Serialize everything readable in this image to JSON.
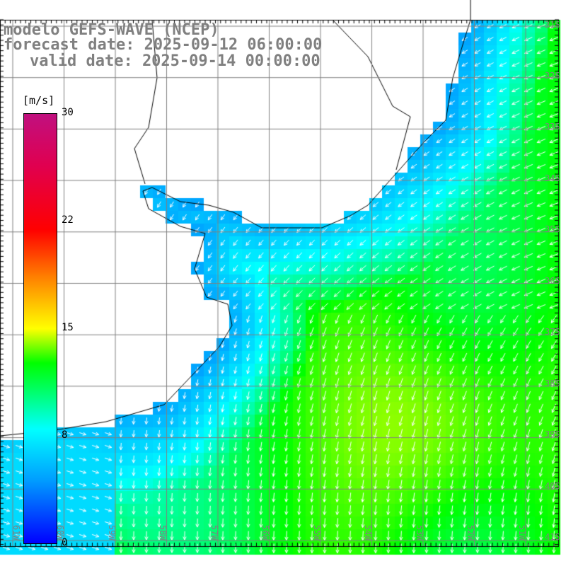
{
  "title": {
    "line1": "modelo GEFS-WAVE (NCEP)",
    "line2": "forecast date: 2025-09-12 06:00:00",
    "line3": "valid date: 2025-09-14 00:00:00"
  },
  "colorbar": {
    "unit": "[m/s]",
    "ticks": [
      "30",
      "22",
      "15",
      "8",
      "0"
    ],
    "tick_values": [
      30,
      22,
      15,
      8,
      0
    ],
    "min": 0,
    "max": 30
  },
  "axes": {
    "lon_labels": [
      "61W",
      "60W",
      "59W",
      "58W",
      "57W",
      "56W",
      "55W",
      "54W",
      "53W",
      "52W",
      "51W"
    ],
    "lat_labels": [
      "31S",
      "32S",
      "33S",
      "34S",
      "35S",
      "36S",
      "37S",
      "38S",
      "39S",
      "40S",
      "41S"
    ]
  }
}
